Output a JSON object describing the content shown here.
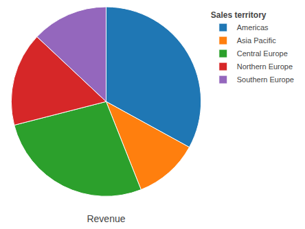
{
  "chart_data": {
    "type": "pie",
    "title": "Revenue",
    "legend_title": "Sales territory",
    "categories": [
      "Americas",
      "Asia Pacific",
      "Central Europe",
      "Northern Europe",
      "Southern Europe"
    ],
    "values": [
      33,
      11,
      27,
      16,
      13
    ],
    "legend": "upper right"
  }
}
